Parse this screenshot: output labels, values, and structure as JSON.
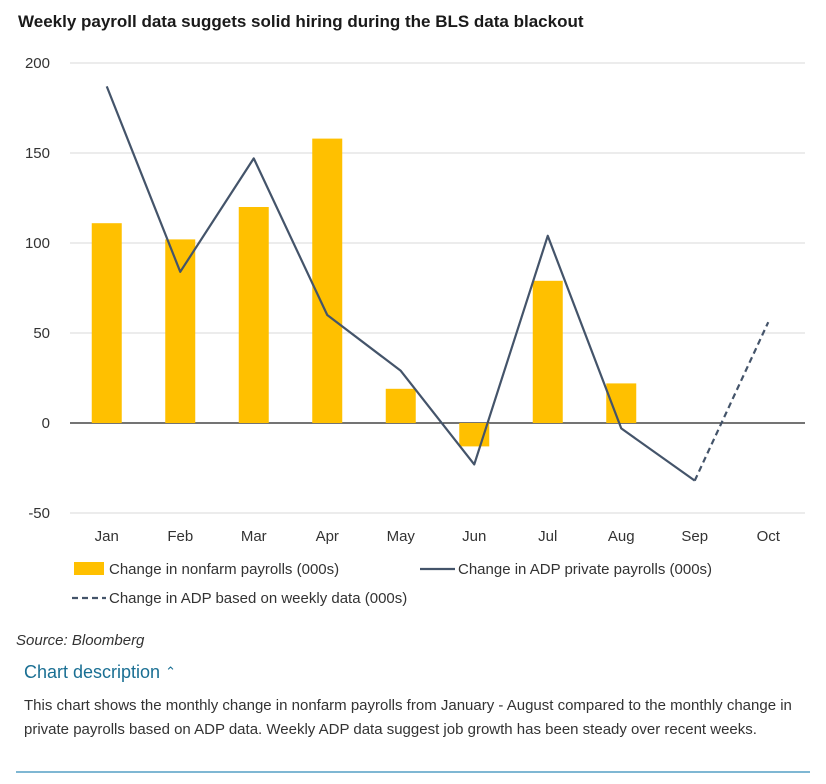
{
  "title": "Weekly payroll data suggets solid hiring during the BLS data blackout",
  "source": "Source: Bloomberg",
  "description_toggle": "Chart description",
  "description_toggle_icon": "chevron-up-icon",
  "description": "This chart shows the monthly change in nonfarm payrolls from January - August compared to the monthly change in private payrolls based on ADP data. Weekly ADP data suggest job growth has been steady over recent weeks.",
  "chart_data": {
    "type": "bar+line",
    "categories": [
      "Jan",
      "Feb",
      "Mar",
      "Apr",
      "May",
      "Jun",
      "Jul",
      "Aug",
      "Sep",
      "Oct"
    ],
    "yticks": [
      200,
      150,
      100,
      50,
      0,
      -50
    ],
    "ylim": [
      -50,
      200
    ],
    "grid": true,
    "legend_position": "bottom",
    "series": [
      {
        "name": "Change in nonfarm payrolls (000s)",
        "type": "bar",
        "color": "#FFC000",
        "values": [
          111,
          102,
          120,
          158,
          19,
          -13,
          79,
          22,
          null,
          null
        ]
      },
      {
        "name": "Change in ADP private payrolls (000s)",
        "type": "line",
        "color": "#44546A",
        "values": [
          187,
          84,
          147,
          60,
          29,
          -23,
          104,
          -3,
          -32,
          null
        ]
      },
      {
        "name": "Change in ADP based on weekly data (000s)",
        "type": "dashed-line",
        "color": "#44546A",
        "values": [
          null,
          null,
          null,
          null,
          null,
          null,
          null,
          null,
          -32,
          56
        ]
      }
    ]
  }
}
